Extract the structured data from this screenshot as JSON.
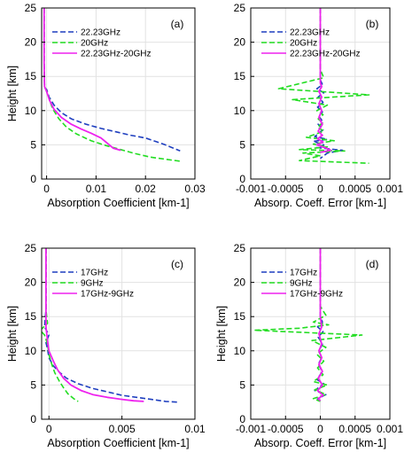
{
  "chart_data": [
    {
      "type": "line",
      "title": "(a)",
      "xlabel": "Absorption Coefficient [km-1]",
      "ylabel": "Height [km]",
      "xlim": [
        -0.001,
        0.03
      ],
      "ylim": [
        0,
        25
      ],
      "xticks": [
        0,
        0.01,
        0.02,
        0.03
      ],
      "xtick_labels": [
        "0",
        "0.01",
        "0.02",
        "0.03"
      ],
      "yticks": [
        0,
        5,
        10,
        15,
        20,
        25
      ],
      "ytick_labels": [
        "0",
        "5",
        "10",
        "15",
        "20",
        "25"
      ],
      "grid": true,
      "legend": "top-left",
      "series": [
        {
          "name": "22.23GHz",
          "color": "#1f3fbf",
          "dash": "dashed",
          "x": [
            -0.0005,
            -0.0005,
            -0.0004,
            0.0,
            0.0005,
            0.0015,
            0.003,
            0.005,
            0.008,
            0.011,
            0.014,
            0.017,
            0.02,
            0.022,
            0.024,
            0.026,
            0.027
          ],
          "y": [
            25,
            17,
            13.4,
            13.1,
            12.0,
            10.8,
            9.7,
            8.8,
            8.0,
            7.4,
            6.9,
            6.4,
            6.0,
            5.5,
            5.0,
            4.4,
            4.1
          ]
        },
        {
          "name": "20GHz",
          "color": "#22dd22",
          "dash": "dashed",
          "x": [
            -0.0005,
            -0.0005,
            -0.0004,
            -0.0001,
            0.0005,
            0.0012,
            0.0025,
            0.004,
            0.006,
            0.009,
            0.012,
            0.015,
            0.018,
            0.021,
            0.024,
            0.027
          ],
          "y": [
            25,
            16,
            13.6,
            13.0,
            11.8,
            10.3,
            8.8,
            7.6,
            6.6,
            5.6,
            4.9,
            4.3,
            3.7,
            3.2,
            2.9,
            2.6
          ]
        },
        {
          "name": "22.23GHz-20GHz",
          "color": "#ee22ee",
          "dash": "solid",
          "x": [
            -0.0005,
            -0.0005,
            -0.0004,
            0.0,
            0.0006,
            0.0015,
            0.003,
            0.005,
            0.007,
            0.009,
            0.011,
            0.0125,
            0.0135,
            0.015
          ],
          "y": [
            25,
            17,
            13.5,
            12.8,
            11.5,
            10.2,
            9.0,
            8.0,
            7.3,
            6.7,
            6.0,
            5.1,
            4.5,
            4.2
          ]
        }
      ]
    },
    {
      "type": "line",
      "title": "(b)",
      "xlabel": "Absorp. Coeff. Error [km-1]",
      "ylabel": "",
      "xlim": [
        -0.001,
        0.001
      ],
      "ylim": [
        0,
        25
      ],
      "xticks": [
        -0.001,
        -0.0005,
        0,
        0.0005,
        0.001
      ],
      "xtick_labels": [
        "-0.001",
        "-0.0005",
        "0",
        "0.0005",
        "0.001"
      ],
      "yticks": [
        0,
        5,
        10,
        15,
        20,
        25
      ],
      "ytick_labels": [
        "0",
        "5",
        "10",
        "15",
        "20",
        "25"
      ],
      "grid": true,
      "legend": "top-left",
      "series": [
        {
          "name": "22.23GHz",
          "color": "#1f3fbf",
          "dash": "dashed",
          "x": [
            0,
            0,
            3e-05,
            -5e-05,
            5e-05,
            -3e-05,
            4e-05,
            -4e-05,
            3e-05,
            -2e-05,
            2e-05,
            -3e-05,
            4e-05,
            -8e-05,
            0.0001,
            -0.0001,
            5e-05,
            -5e-05,
            0.00032,
            0.0001,
            0.0
          ],
          "y": [
            25,
            14.5,
            13.8,
            13.2,
            12.6,
            12.0,
            11.2,
            10.5,
            9.8,
            9.2,
            8.6,
            8.0,
            7.2,
            6.2,
            5.8,
            5.5,
            5.0,
            4.6,
            4.2,
            3.8,
            3.0
          ]
        },
        {
          "name": "20GHz",
          "color": "#22dd22",
          "dash": "dashed",
          "x": [
            0,
            0,
            5e-05,
            -0.0006,
            0.0007,
            -0.0004,
            0.0001,
            -5e-05,
            4e-05,
            -3e-05,
            3e-05,
            -4e-05,
            5e-05,
            -0.0002,
            0.0002,
            -0.0001,
            0.0001,
            -0.0003,
            0.00035,
            -0.00025,
            0.0,
            -0.0003,
            0.0007
          ],
          "y": [
            25,
            16,
            14.8,
            13.2,
            12.3,
            11.6,
            10.8,
            10.0,
            9.4,
            8.8,
            8.2,
            7.6,
            7.0,
            6.1,
            5.6,
            5.1,
            4.7,
            4.3,
            4.1,
            3.8,
            3.4,
            2.7,
            2.3
          ]
        },
        {
          "name": "22.23GHz-20GHz",
          "color": "#ee22ee",
          "dash": "solid",
          "x": [
            0,
            0,
            2e-05,
            -2e-05,
            2e-05,
            -2e-05,
            2e-05,
            -2e-05,
            3e-05,
            -3e-05,
            3e-05,
            -4e-05,
            4e-05,
            -5e-05,
            6e-05,
            0.00015,
            0.0
          ],
          "y": [
            25,
            14.0,
            13.5,
            12.8,
            12.0,
            11.0,
            10.0,
            9.0,
            8.0,
            7.0,
            6.4,
            5.9,
            5.4,
            5.0,
            4.6,
            4.2,
            3.9
          ]
        }
      ]
    },
    {
      "type": "line",
      "title": "(c)",
      "xlabel": "Absorption Coefficient [km-1]",
      "ylabel": "Height [km]",
      "xlim": [
        -0.0005,
        0.01
      ],
      "ylim": [
        0,
        25
      ],
      "xticks": [
        0,
        0.005,
        0.01
      ],
      "xtick_labels": [
        "0",
        "0.005",
        "0.01"
      ],
      "yticks": [
        0,
        5,
        10,
        15,
        20,
        25
      ],
      "ytick_labels": [
        "0",
        "5",
        "10",
        "15",
        "20",
        "25"
      ],
      "grid": true,
      "legend": "top-left",
      "series": [
        {
          "name": "17GHz",
          "color": "#1f3fbf",
          "dash": "dashed",
          "x": [
            -0.0002,
            -0.0002,
            -0.0003,
            0.0,
            -0.0002,
            -0.0001,
            0.0,
            0.0003,
            0.0007,
            0.0012,
            0.002,
            0.003,
            0.004,
            0.005,
            0.006,
            0.007,
            0.008,
            0.0088
          ],
          "y": [
            25,
            16,
            13.5,
            12.3,
            11.2,
            10.3,
            9.0,
            7.8,
            6.9,
            6.0,
            5.2,
            4.5,
            4.0,
            3.5,
            3.2,
            2.9,
            2.6,
            2.5
          ]
        },
        {
          "name": "9GHz",
          "color": "#22dd22",
          "dash": "dashed",
          "x": [
            -0.0002,
            -0.0002,
            -0.0001,
            -0.0006,
            -0.0003,
            -0.0001,
            0.0,
            0.0002,
            0.0004,
            0.0007,
            0.001,
            0.0013,
            0.0017,
            0.002
          ],
          "y": [
            25,
            16,
            14.0,
            13.0,
            12.3,
            11.0,
            9.5,
            8.0,
            6.8,
            5.6,
            4.6,
            3.7,
            3.0,
            2.6
          ]
        },
        {
          "name": "17GHz-9GHz",
          "color": "#ee22ee",
          "dash": "solid",
          "x": [
            -0.0002,
            -0.0002,
            -0.0002,
            -0.0001,
            0.0,
            0.0003,
            0.0006,
            0.001,
            0.0015,
            0.0022,
            0.003,
            0.004,
            0.005,
            0.0058,
            0.0065
          ],
          "y": [
            25,
            16,
            13.5,
            11.5,
            10.0,
            8.5,
            7.2,
            6.0,
            5.0,
            4.2,
            3.6,
            3.2,
            2.9,
            2.7,
            2.6
          ]
        }
      ]
    },
    {
      "type": "line",
      "title": "(d)",
      "xlabel": "Absorp. Coeff. Error [km-1]",
      "ylabel": "Height [km]",
      "xlim": [
        -0.001,
        0.001
      ],
      "ylim": [
        0,
        25
      ],
      "xticks": [
        -0.001,
        -0.0005,
        0,
        0.0005,
        0.001
      ],
      "xtick_labels": [
        "-0.001",
        "-0.0005",
        "0",
        "0.0005",
        "0.001"
      ],
      "yticks": [
        0,
        5,
        10,
        15,
        20,
        25
      ],
      "ytick_labels": [
        "0",
        "5",
        "10",
        "15",
        "20",
        "25"
      ],
      "grid": true,
      "legend": "top-left",
      "series": [
        {
          "name": "17GHz",
          "color": "#1f3fbf",
          "dash": "dashed",
          "x": [
            0,
            0,
            3e-05,
            -4e-05,
            4e-05,
            -3e-05,
            3e-05,
            -2e-05,
            2e-05,
            -3e-05,
            3e-05,
            -5e-05,
            5e-05,
            -8e-05,
            8e-05,
            -4e-05,
            0.0
          ],
          "y": [
            25,
            15,
            14.2,
            13.5,
            12.8,
            12.0,
            11.0,
            10.0,
            9.0,
            8.0,
            7.0,
            5.8,
            5.2,
            4.2,
            3.6,
            3.0,
            2.7
          ]
        },
        {
          "name": "9GHz",
          "color": "#22dd22",
          "dash": "dashed",
          "x": [
            0,
            0,
            8e-05,
            -0.0001,
            0.00012,
            -0.0003,
            -0.00095,
            0.0006,
            -0.00012,
            8e-05,
            -5e-05,
            5e-05,
            -4e-05,
            4e-05,
            -0.0001,
            0.0001,
            -8e-05,
            8e-05,
            -0.0001,
            0.0
          ],
          "y": [
            25,
            16.5,
            15.2,
            14.2,
            13.8,
            13.3,
            13.0,
            12.3,
            11.5,
            10.5,
            9.5,
            8.5,
            7.5,
            6.5,
            5.5,
            5.0,
            4.3,
            3.6,
            3.0,
            2.6
          ]
        },
        {
          "name": "17GHz-9GHz",
          "color": "#ee22ee",
          "dash": "solid",
          "x": [
            0,
            0,
            2e-05,
            -2e-05,
            2e-05,
            -2e-05,
            2e-05,
            -2e-05,
            3e-05,
            -3e-05,
            3e-05,
            -4e-05,
            4e-05,
            -3e-05,
            0.0
          ],
          "y": [
            25,
            15,
            13.5,
            12.5,
            11.0,
            10.0,
            9.0,
            8.0,
            7.0,
            6.0,
            5.0,
            4.2,
            3.5,
            3.0,
            2.7
          ]
        }
      ]
    }
  ]
}
